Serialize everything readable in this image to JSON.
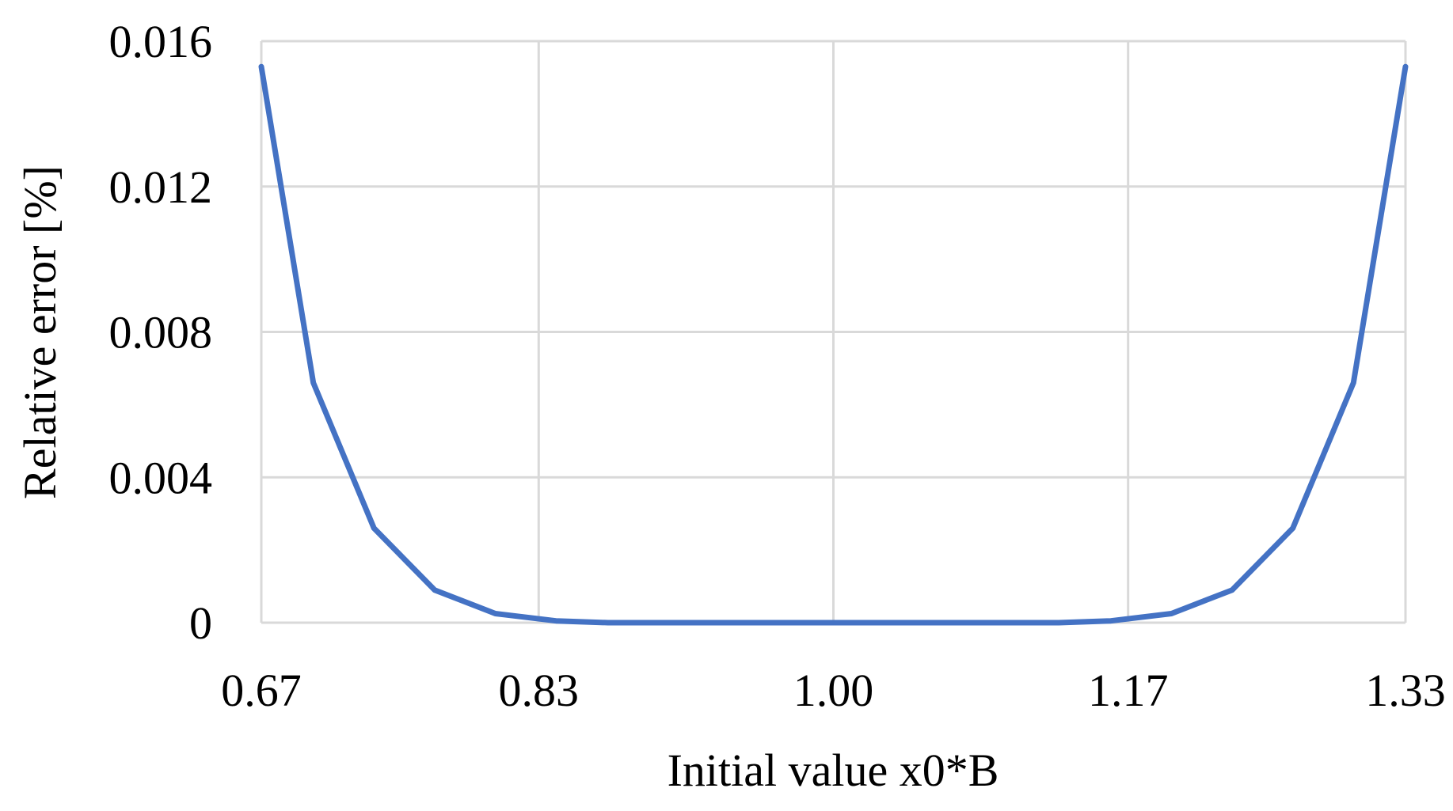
{
  "chart_data": {
    "type": "line",
    "title": "",
    "xlabel": "Initial value x0*B",
    "ylabel": "Relative error [%]",
    "xlim": [
      0.67,
      1.33
    ],
    "ylim": [
      0,
      0.016
    ],
    "x_tick_labels": [
      "0.67",
      "0.83",
      "1.00",
      "1.17",
      "1.33"
    ],
    "x_tick_values": [
      0.67,
      0.83,
      1.0,
      1.17,
      1.33
    ],
    "y_tick_labels": [
      "0",
      "0.004",
      "0.008",
      "0.012",
      "0.016"
    ],
    "y_tick_values": [
      0,
      0.004,
      0.008,
      0.012,
      0.016
    ],
    "grid": true,
    "legend": "none",
    "series": [
      {
        "color": "#4472C4",
        "x": [
          0.67,
          0.7,
          0.735,
          0.77,
          0.805,
          0.84,
          0.87,
          0.9,
          0.93,
          0.965,
          1.0,
          1.035,
          1.07,
          1.1,
          1.13,
          1.16,
          1.195,
          1.23,
          1.265,
          1.3,
          1.33
        ],
        "y": [
          0.0153,
          0.0066,
          0.0026,
          0.0009,
          0.00025,
          5e-05,
          0.0,
          0.0,
          0.0,
          0.0,
          0.0,
          0.0,
          0.0,
          0.0,
          0.0,
          5e-05,
          0.00025,
          0.0009,
          0.0026,
          0.0066,
          0.0153
        ]
      }
    ]
  }
}
